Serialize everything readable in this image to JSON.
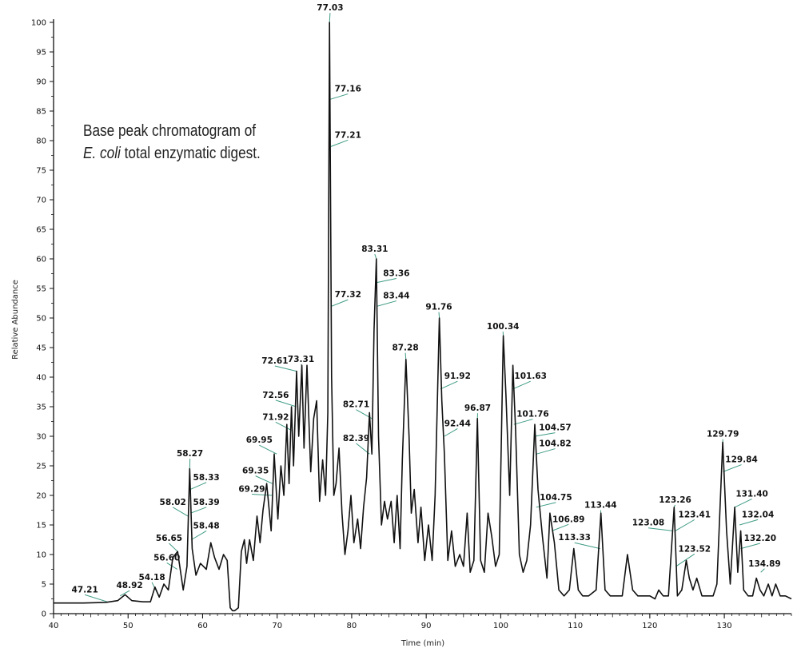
{
  "chart_data": {
    "type": "line",
    "title": "",
    "caption": {
      "line1": "Base peak chromatogram of",
      "line2_species": "E. coli",
      "line2_rest": " total enzymatic digest."
    },
    "xlabel": "Time (min)",
    "ylabel": "Relative Abundance",
    "xlim": [
      40,
      139
    ],
    "ylim": [
      0,
      100
    ],
    "x_ticks": [
      40,
      50,
      60,
      70,
      80,
      90,
      100,
      110,
      120,
      130
    ],
    "y_ticks": [
      0,
      5,
      10,
      15,
      20,
      25,
      30,
      35,
      40,
      45,
      50,
      55,
      60,
      65,
      70,
      75,
      80,
      85,
      90,
      95,
      100
    ],
    "grid": false,
    "colors": {
      "trace": "#111111",
      "leader": "#3e9b84"
    },
    "series": [
      {
        "x": [
          40,
          44,
          47,
          48.6,
          49.6,
          50.5,
          52,
          53.0,
          53.6,
          54.18,
          54.8,
          55.4,
          56.0,
          56.65,
          57.4,
          57.9,
          58.27,
          58.6,
          59.1,
          59.7,
          60.5,
          61.1,
          61.6,
          62.2,
          62.8,
          63.3,
          63.7,
          64.0,
          64.3,
          64.8,
          65.2,
          65.6,
          65.9,
          66.3,
          66.8,
          67.3,
          67.7,
          68.1,
          68.6,
          69.2,
          69.6,
          70.1,
          70.5,
          70.9,
          71.3,
          71.6,
          71.92,
          72.2,
          72.61,
          72.9,
          73.31,
          73.6,
          74.0,
          74.5,
          74.9,
          75.3,
          75.7,
          76.1,
          76.5,
          76.8,
          77.03,
          77.3,
          77.6,
          77.9,
          78.3,
          78.7,
          79.1,
          79.5,
          79.9,
          80.3,
          80.8,
          81.2,
          81.6,
          82.0,
          82.39,
          82.71,
          83.0,
          83.31,
          83.6,
          84.0,
          84.4,
          84.8,
          85.3,
          85.7,
          86.1,
          86.5,
          86.8,
          87.28,
          87.7,
          88.0,
          88.4,
          88.9,
          89.3,
          89.8,
          90.3,
          90.8,
          91.2,
          91.76,
          92.1,
          92.44,
          92.9,
          93.4,
          93.9,
          94.5,
          95.0,
          95.5,
          95.9,
          96.4,
          96.87,
          97.3,
          97.8,
          98.3,
          98.8,
          99.3,
          99.8,
          100.34,
          100.7,
          101.2,
          101.63,
          102.0,
          102.5,
          103.0,
          103.5,
          104.0,
          104.57,
          105.0,
          105.6,
          106.2,
          106.6,
          107.2,
          107.8,
          108.5,
          109.2,
          109.8,
          110.4,
          111.0,
          111.8,
          112.8,
          113.44,
          114.0,
          114.7,
          115.5,
          116.3,
          117.0,
          117.7,
          118.4,
          119.2,
          120.0,
          120.7,
          121.2,
          121.8,
          122.5,
          123.26,
          123.7,
          124.3,
          124.9,
          125.3,
          125.8,
          126.3,
          127.0,
          127.8,
          128.5,
          129.0,
          129.79,
          130.3,
          130.8,
          131.4,
          131.8,
          132.2,
          132.6,
          133.2,
          133.8,
          134.3,
          134.8,
          135.3,
          135.9,
          136.4,
          136.9,
          137.5,
          138.2,
          139
        ],
        "y": [
          1.8,
          1.8,
          1.9,
          2.2,
          3.2,
          2.2,
          2.0,
          2.0,
          4.5,
          2.8,
          5.0,
          4.0,
          9.5,
          10.5,
          4.0,
          8.0,
          24.5,
          11.0,
          6.5,
          8.5,
          7.5,
          12.0,
          9.5,
          7.5,
          10.0,
          9.0,
          1.0,
          0.5,
          0.5,
          1.0,
          10.5,
          12.5,
          8.5,
          12.5,
          9.0,
          16.5,
          12.0,
          17.5,
          22.0,
          14.0,
          27.0,
          16.0,
          25.0,
          20.0,
          32.0,
          22.0,
          35.0,
          25.0,
          41.0,
          30.0,
          42.0,
          28.0,
          42.0,
          24.0,
          33.0,
          36.0,
          19.0,
          26.0,
          20.0,
          34.0,
          100.0,
          40.0,
          20.0,
          22.0,
          28.0,
          17.0,
          10.0,
          14.0,
          20.0,
          12.0,
          16.0,
          11.0,
          18.0,
          23.0,
          34.0,
          27.0,
          48.0,
          60.0,
          30.0,
          15.0,
          19.0,
          16.0,
          19.0,
          12.0,
          20.0,
          11.0,
          26.0,
          43.0,
          30.0,
          17.0,
          21.0,
          12.0,
          18.0,
          9.0,
          15.0,
          9.0,
          20.0,
          50.0,
          36.0,
          27.0,
          9.0,
          14.0,
          8.0,
          10.0,
          8.0,
          17.0,
          7.0,
          9.0,
          33.0,
          9.0,
          7.0,
          17.0,
          13.0,
          8.0,
          10.0,
          47.0,
          37.0,
          20.0,
          42.0,
          31.0,
          10.0,
          7.0,
          9.0,
          15.0,
          32.0,
          21.0,
          13.0,
          6.0,
          17.0,
          12.0,
          4.0,
          3.0,
          4.0,
          11.0,
          4.0,
          3.0,
          3.0,
          4.0,
          17.0,
          4.0,
          3.0,
          3.0,
          3.0,
          10.0,
          4.0,
          3.0,
          3.0,
          3.0,
          2.5,
          4.0,
          3.0,
          3.0,
          18.0,
          3.0,
          4.0,
          9.0,
          6.0,
          4.0,
          6.0,
          3.0,
          3.0,
          3.0,
          5.0,
          29.0,
          14.0,
          5.0,
          18.0,
          7.0,
          14.0,
          4.0,
          3.0,
          3.0,
          6.0,
          4.0,
          3.0,
          5.0,
          3.0,
          5.0,
          3.0,
          3.0,
          2.5
        ]
      }
    ],
    "annotations": [
      {
        "text": "47.21",
        "x": 47.21,
        "y": 2.0,
        "lx": 44.2,
        "ly": 3.6
      },
      {
        "text": "48.92",
        "x": 48.92,
        "y": 3.0,
        "lx": 50.2,
        "ly": 4.3
      },
      {
        "text": "54.18",
        "x": 54.18,
        "y": 2.8,
        "lx": 53.2,
        "ly": 5.7
      },
      {
        "text": "56.60",
        "x": 56.6,
        "y": 7.5,
        "lx": 55.2,
        "ly": 9.0
      },
      {
        "text": "56.65",
        "x": 56.65,
        "y": 10.5,
        "lx": 55.5,
        "ly": 12.3
      },
      {
        "text": "58.02",
        "x": 58.02,
        "y": 16.5,
        "lx": 56.0,
        "ly": 18.4
      },
      {
        "text": "58.27",
        "x": 58.27,
        "y": 24.5,
        "lx": 58.3,
        "ly": 26.6
      },
      {
        "text": "58.33",
        "x": 58.33,
        "y": 21.0,
        "lx": 60.5,
        "ly": 22.6
      },
      {
        "text": "58.39",
        "x": 58.39,
        "y": 17.0,
        "lx": 60.5,
        "ly": 18.4
      },
      {
        "text": "58.48",
        "x": 58.48,
        "y": 12.5,
        "lx": 60.5,
        "ly": 14.4
      },
      {
        "text": "69.29",
        "x": 69.29,
        "y": 20.0,
        "lx": 66.6,
        "ly": 20.6
      },
      {
        "text": "69.35",
        "x": 69.35,
        "y": 22.0,
        "lx": 67.1,
        "ly": 23.7
      },
      {
        "text": "69.95",
        "x": 69.95,
        "y": 27.0,
        "lx": 67.6,
        "ly": 28.9
      },
      {
        "text": "71.92",
        "x": 71.92,
        "y": 31.0,
        "lx": 69.8,
        "ly": 32.8
      },
      {
        "text": "72.56",
        "x": 72.56,
        "y": 35.0,
        "lx": 69.8,
        "ly": 36.5
      },
      {
        "text": "72.61",
        "x": 72.61,
        "y": 41.0,
        "lx": 69.7,
        "ly": 42.3
      },
      {
        "text": "73.31",
        "x": 73.31,
        "y": 42.0,
        "lx": 73.2,
        "ly": 42.6
      },
      {
        "text": "77.03",
        "x": 77.03,
        "y": 100.0,
        "lx": 77.1,
        "ly": 102.0
      },
      {
        "text": "77.16",
        "x": 77.16,
        "y": 87.0,
        "lx": 79.5,
        "ly": 88.3
      },
      {
        "text": "77.21",
        "x": 77.21,
        "y": 79.0,
        "lx": 79.5,
        "ly": 80.5
      },
      {
        "text": "77.32",
        "x": 77.32,
        "y": 52.0,
        "lx": 79.5,
        "ly": 53.5
      },
      {
        "text": "82.39",
        "x": 82.39,
        "y": 27.0,
        "lx": 80.6,
        "ly": 29.2
      },
      {
        "text": "82.71",
        "x": 82.71,
        "y": 33.0,
        "lx": 80.6,
        "ly": 34.9
      },
      {
        "text": "83.31",
        "x": 83.31,
        "y": 60.0,
        "lx": 83.1,
        "ly": 61.2
      },
      {
        "text": "83.36",
        "x": 83.36,
        "y": 56.0,
        "lx": 86.0,
        "ly": 57.1
      },
      {
        "text": "83.44",
        "x": 83.44,
        "y": 52.0,
        "lx": 86.0,
        "ly": 53.3
      },
      {
        "text": "87.28",
        "x": 87.28,
        "y": 43.0,
        "lx": 87.2,
        "ly": 44.5
      },
      {
        "text": "91.76",
        "x": 91.76,
        "y": 50.0,
        "lx": 91.7,
        "ly": 51.4
      },
      {
        "text": "91.92",
        "x": 91.92,
        "y": 38.0,
        "lx": 94.2,
        "ly": 39.7
      },
      {
        "text": "92.44",
        "x": 92.44,
        "y": 30.0,
        "lx": 94.2,
        "ly": 31.7
      },
      {
        "text": "96.87",
        "x": 96.87,
        "y": 33.0,
        "lx": 96.9,
        "ly": 34.3
      },
      {
        "text": "100.34",
        "x": 100.34,
        "y": 47.0,
        "lx": 100.3,
        "ly": 48.1
      },
      {
        "text": "101.63",
        "x": 101.63,
        "y": 38.0,
        "lx": 104.0,
        "ly": 39.7
      },
      {
        "text": "101.76",
        "x": 101.76,
        "y": 32.0,
        "lx": 104.3,
        "ly": 33.3
      },
      {
        "text": "104.57",
        "x": 104.57,
        "y": 30.0,
        "lx": 107.3,
        "ly": 31.0
      },
      {
        "text": "104.82",
        "x": 104.82,
        "y": 27.0,
        "lx": 107.3,
        "ly": 28.3
      },
      {
        "text": "104.75",
        "x": 104.75,
        "y": 18.0,
        "lx": 107.4,
        "ly": 19.2
      },
      {
        "text": "106.89",
        "x": 106.89,
        "y": 14.0,
        "lx": 109.1,
        "ly": 15.5
      },
      {
        "text": "113.33",
        "x": 113.33,
        "y": 11.0,
        "lx": 109.9,
        "ly": 12.4
      },
      {
        "text": "113.44",
        "x": 113.44,
        "y": 17.0,
        "lx": 113.4,
        "ly": 17.9
      },
      {
        "text": "123.08",
        "x": 123.08,
        "y": 14.0,
        "lx": 119.8,
        "ly": 14.9
      },
      {
        "text": "123.26",
        "x": 123.26,
        "y": 18.0,
        "lx": 123.4,
        "ly": 18.8
      },
      {
        "text": "123.41",
        "x": 123.41,
        "y": 14.0,
        "lx": 126.0,
        "ly": 16.3
      },
      {
        "text": "123.52",
        "x": 123.52,
        "y": 8.0,
        "lx": 126.0,
        "ly": 10.5
      },
      {
        "text": "129.79",
        "x": 129.79,
        "y": 29.0,
        "lx": 129.8,
        "ly": 29.9
      },
      {
        "text": "129.84",
        "x": 129.84,
        "y": 24.0,
        "lx": 132.3,
        "ly": 25.6
      },
      {
        "text": "131.40",
        "x": 131.4,
        "y": 18.0,
        "lx": 133.7,
        "ly": 19.8
      },
      {
        "text": "132.04",
        "x": 132.04,
        "y": 15.0,
        "lx": 134.5,
        "ly": 16.3
      },
      {
        "text": "132.20",
        "x": 132.2,
        "y": 11.0,
        "lx": 134.8,
        "ly": 12.3
      },
      {
        "text": "134.89",
        "x": 134.89,
        "y": 7.0,
        "lx": 135.4,
        "ly": 8.0
      }
    ]
  }
}
